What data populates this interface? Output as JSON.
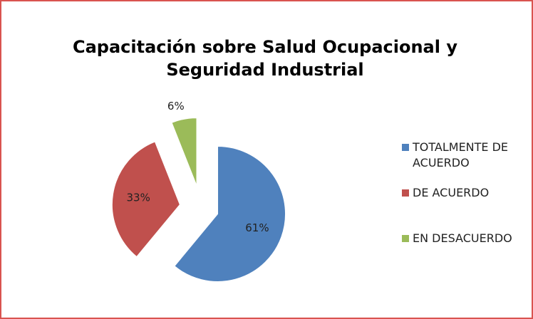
{
  "chart_data": {
    "type": "pie",
    "title": "Capacitación sobre Salud Ocupacional y Seguridad Industrial",
    "categories": [
      "TOTALMENTE DE ACUERDO",
      "DE ACUERDO",
      "EN DESACUERDO"
    ],
    "values": [
      61,
      33,
      6
    ],
    "value_labels": [
      "61%",
      "33%",
      "6%"
    ],
    "colors": [
      "#4f81bd",
      "#c0504d",
      "#9bbb59"
    ],
    "legend": "right"
  }
}
